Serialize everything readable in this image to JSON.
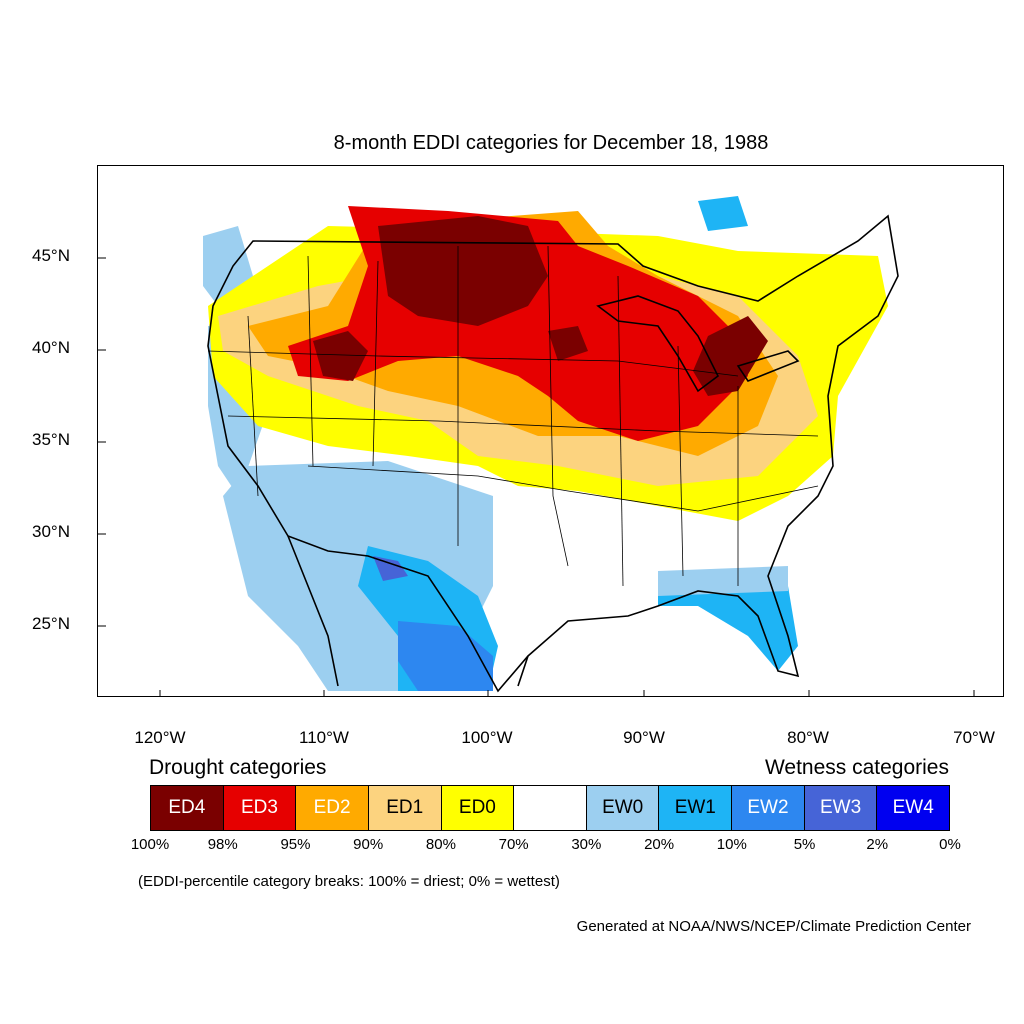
{
  "title": "8-month EDDI categories for December 18, 1988",
  "axes": {
    "lat_labels": [
      "45°N",
      "40°N",
      "35°N",
      "30°N",
      "25°N"
    ],
    "lon_labels": [
      "120°W",
      "110°W",
      "100°W",
      "90°W",
      "80°W",
      "70°W"
    ]
  },
  "legend": {
    "drought_title": "Drought categories",
    "wetness_title": "Wetness categories",
    "categories": [
      {
        "label": "ED4",
        "color": "#7a0000",
        "text_color": "#ffffff"
      },
      {
        "label": "ED3",
        "color": "#e60000",
        "text_color": "#ffffff"
      },
      {
        "label": "ED2",
        "color": "#ffaa00",
        "text_color": "#ffffff"
      },
      {
        "label": "ED1",
        "color": "#fcd37f",
        "text_color": "#000000"
      },
      {
        "label": "ED0",
        "color": "#ffff00",
        "text_color": "#000000"
      },
      {
        "label": "",
        "color": "#ffffff",
        "text_color": "#000000"
      },
      {
        "label": "EW0",
        "color": "#9ccff0",
        "text_color": "#000000"
      },
      {
        "label": "EW1",
        "color": "#1eb4f5",
        "text_color": "#000000"
      },
      {
        "label": "EW2",
        "color": "#2d87f0",
        "text_color": "#ffffff"
      },
      {
        "label": "EW3",
        "color": "#4664d7",
        "text_color": "#ffffff"
      },
      {
        "label": "EW4",
        "color": "#0000f0",
        "text_color": "#ffffff"
      }
    ],
    "breaks": [
      "100%",
      "98%",
      "95%",
      "90%",
      "80%",
      "70%",
      "30%",
      "20%",
      "10%",
      "5%",
      "2%",
      "0%"
    ],
    "breaks_note": "(EDDI-percentile category breaks: 100% = driest; 0% = wettest)"
  },
  "credit": "Generated at NOAA/NWS/NCEP/Climate Prediction Center"
}
